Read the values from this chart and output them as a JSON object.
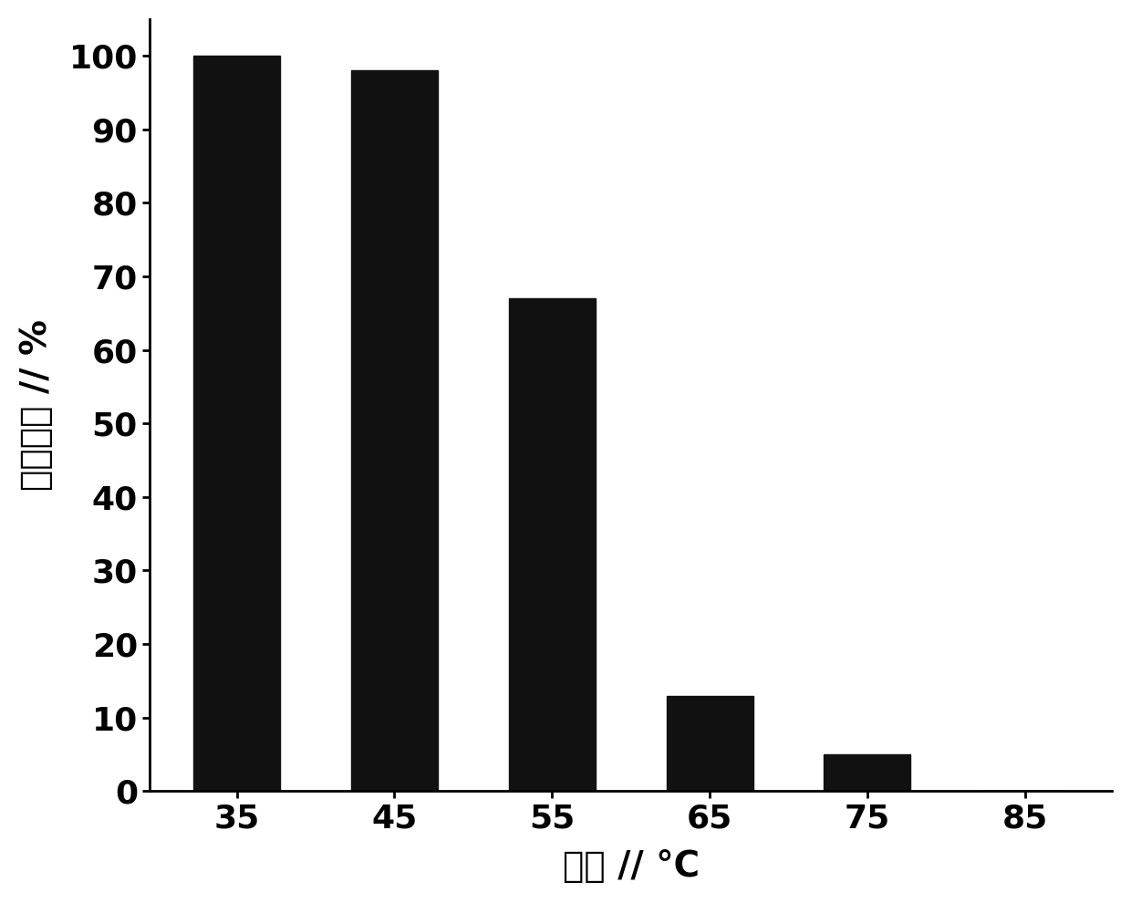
{
  "categories": [
    "35",
    "45",
    "55",
    "65",
    "75",
    "85"
  ],
  "values": [
    100,
    98,
    67,
    13,
    5,
    0
  ],
  "bar_color": "#111111",
  "xlabel": "温度 // °C",
  "ylabel": "相对酶活 // %",
  "ylim": [
    0,
    105
  ],
  "yticks": [
    0,
    10,
    20,
    30,
    40,
    50,
    60,
    70,
    80,
    90,
    100
  ],
  "xlabel_fontsize": 28,
  "ylabel_fontsize": 28,
  "tick_fontsize": 26,
  "bar_width": 0.55,
  "background_color": "#ffffff"
}
